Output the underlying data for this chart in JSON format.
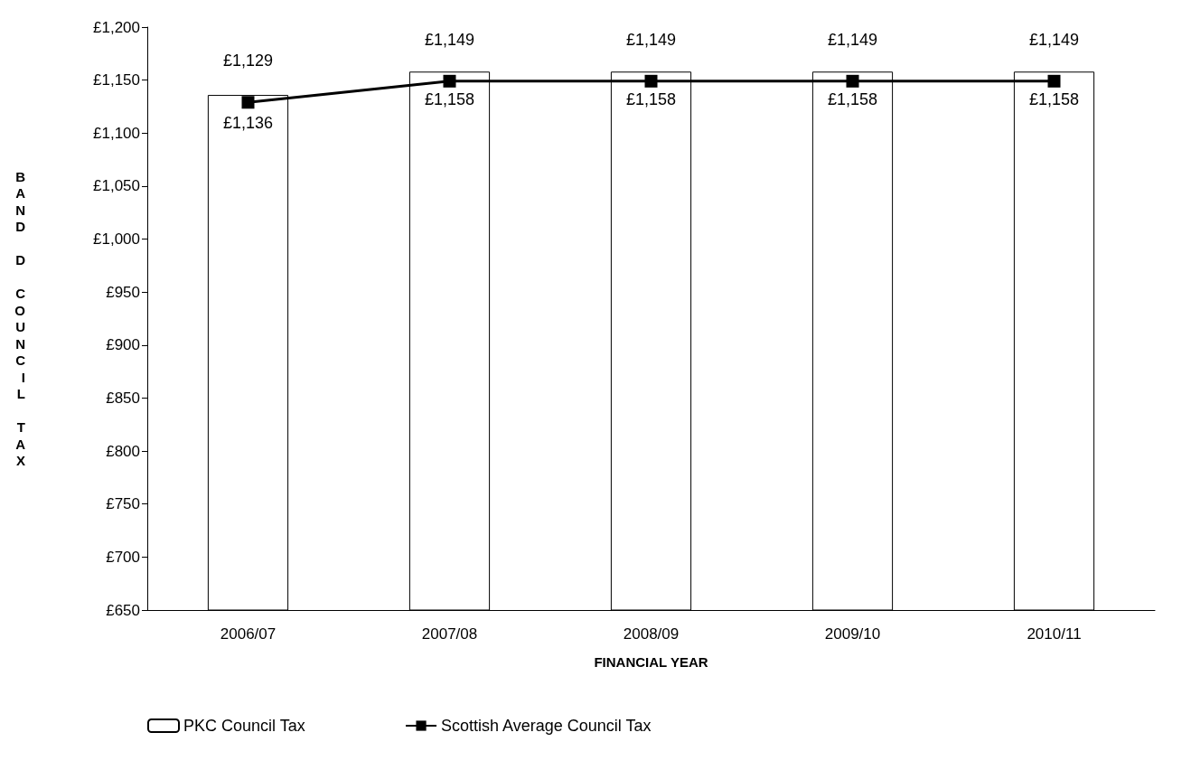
{
  "chart_data": {
    "type": "bar",
    "xlabel": "FINANCIAL YEAR",
    "ylabel": "BAND D COUNCIL TAX",
    "categories": [
      "2006/07",
      "2007/08",
      "2008/09",
      "2009/10",
      "2010/11"
    ],
    "series": [
      {
        "name": "PKC Council Tax",
        "color": "#ffffff",
        "values": [
          1136,
          1158,
          1158,
          1158,
          1158
        ],
        "value_labels": [
          "£1,136",
          "£1,158",
          "£1,158",
          "£1,158",
          "£1,158"
        ]
      },
      {
        "name": "Scottish Average Council Tax",
        "type": "line",
        "color": "#000000",
        "marker": "square",
        "values": [
          1129,
          1149,
          1149,
          1149,
          1149
        ],
        "value_labels": [
          "£1,129",
          "£1,149",
          "£1,149",
          "£1,149",
          "£1,149"
        ]
      }
    ],
    "ylim": [
      650,
      1200
    ],
    "yticks": [
      {
        "value": 650,
        "label": "£650"
      },
      {
        "value": 700,
        "label": "£700"
      },
      {
        "value": 750,
        "label": "£750"
      },
      {
        "value": 800,
        "label": "£800"
      },
      {
        "value": 850,
        "label": "£850"
      },
      {
        "value": 900,
        "label": "£900"
      },
      {
        "value": 950,
        "label": "£950"
      },
      {
        "value": 1000,
        "label": "£1,000"
      },
      {
        "value": 1050,
        "label": "£1,050"
      },
      {
        "value": 1100,
        "label": "£1,100"
      },
      {
        "value": 1150,
        "label": "£1,150"
      },
      {
        "value": 1200,
        "label": "£1,200"
      }
    ],
    "grid": false,
    "legend": "bottom left"
  }
}
